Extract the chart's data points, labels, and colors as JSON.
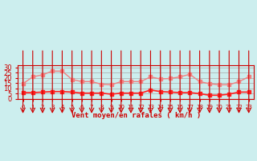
{
  "hours": [
    0,
    1,
    2,
    3,
    4,
    5,
    6,
    7,
    8,
    9,
    10,
    11,
    12,
    13,
    14,
    15,
    16,
    17,
    18,
    19,
    20,
    21,
    22,
    23
  ],
  "rafales": [
    14.5,
    21,
    23,
    26.5,
    26.5,
    18.5,
    16.5,
    16.5,
    14,
    13.5,
    16.5,
    16.5,
    16.5,
    21,
    19,
    19.5,
    21,
    23.5,
    16.5,
    14.5,
    13.5,
    13.5,
    16.5,
    21
  ],
  "moyen": [
    6,
    6,
    6.5,
    7,
    7,
    6.5,
    5.5,
    5.5,
    5.5,
    4.5,
    5.5,
    5.5,
    5.5,
    8.5,
    7,
    6.5,
    6,
    6,
    5,
    3.5,
    3.5,
    4.5,
    6.5,
    6.5
  ],
  "rafales_color": "#f08080",
  "moyen_color": "#ff2020",
  "bg_color": "#cceeee",
  "grid_color": "#aaaaaa",
  "xlabel": "Vent moyen/en rafales ( km/h )",
  "xlabel_color": "#cc0000",
  "ylabel_color": "#cc0000",
  "yticks": [
    0,
    5,
    10,
    15,
    20,
    25,
    30
  ],
  "ylim": [
    0,
    32
  ],
  "arrow_color": "#cc0000",
  "tick_color": "#cc0000",
  "axis_color": "#cc0000"
}
